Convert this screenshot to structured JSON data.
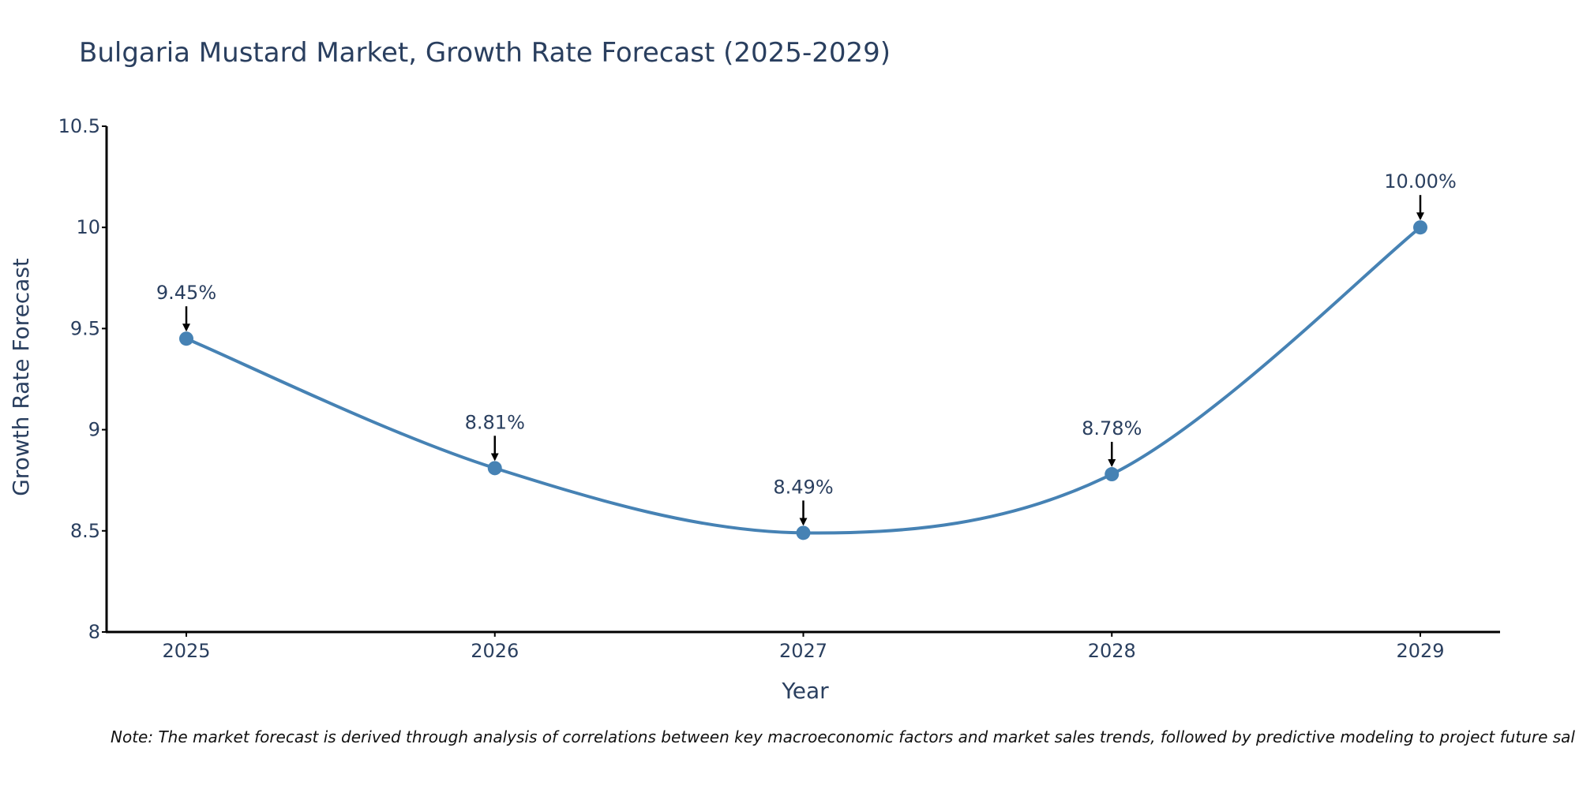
{
  "chart_data": {
    "type": "line",
    "title": "Bulgaria Mustard Market, Growth Rate Forecast (2025-2029)",
    "xlabel": "Year",
    "ylabel": "Growth Rate Forecast",
    "x": [
      "2025",
      "2026",
      "2027",
      "2028",
      "2029"
    ],
    "series": [
      {
        "name": "Growth Rate Forecast",
        "values": [
          9.45,
          8.81,
          8.49,
          8.78,
          10.0
        ]
      }
    ],
    "data_labels": [
      "9.45%",
      "8.81%",
      "8.49%",
      "8.78%",
      "10.00%"
    ],
    "ylim": [
      8,
      10.5
    ],
    "yticks": [
      8,
      8.5,
      9,
      9.5,
      10,
      10.5
    ],
    "ytick_labels": [
      "8",
      "8.5",
      "9",
      "9.5",
      "10",
      "10.5"
    ],
    "line_color": "#4682b4",
    "grid": false,
    "legend": false,
    "note": "Note: The market forecast is derived through analysis of correlations between key macroeconomic factors and market sales trends, followed by predictive modeling to project future sal"
  }
}
